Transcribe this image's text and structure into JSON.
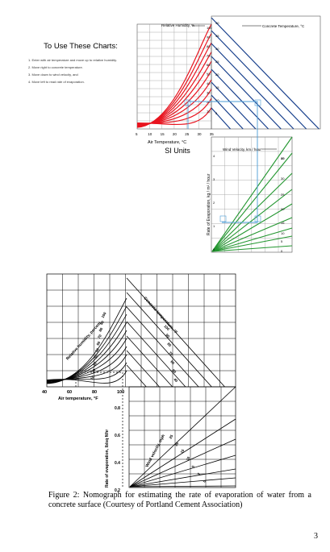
{
  "si_chart": {
    "instructions_title": "To Use These Charts:",
    "steps": [
      "1. Enter with air temperature and move up to relative humidity.",
      "2. Move right to concrete temperature.",
      "3. Move down to wind velocity, and",
      "4. Move left to read rate of evaporation."
    ],
    "rh_label": "Relative Humidity, %",
    "ct_label": "Concrete Temperature, °C",
    "rh_values": [
      "100",
      "90",
      "80",
      "70",
      "60",
      "50",
      "40",
      "30",
      "20",
      "10"
    ],
    "ct_values": [
      "40",
      "35",
      "30",
      "25",
      "20",
      "15",
      "10",
      "5"
    ],
    "air_ticks": [
      "5",
      "10",
      "15",
      "20",
      "25",
      "30",
      "35"
    ],
    "air_label": "Air Temperature, °C",
    "units_label": "SI Units",
    "wind_label": "Wind Velocity, km / hour",
    "wind_values": [
      "40",
      "35",
      "30",
      "25",
      "20",
      "15",
      "10",
      "5",
      "0"
    ],
    "evap_label": "Rate of Evaporation, kg / m² / hour",
    "evap_ticks": [
      "4",
      "3",
      "2",
      "1",
      "0"
    ],
    "colors": {
      "humidity": "#e8141f",
      "concrete": "#173f8c",
      "wind": "#22962f",
      "path": "#4a9bd6"
    }
  },
  "imperial_chart": {
    "rh_label": "Relative humidity, percent",
    "rh_values": [
      "100",
      "90",
      "80",
      "70",
      "60",
      "50",
      "40",
      "30",
      "20",
      "10"
    ],
    "ct_label": "Concrete temperature, °F",
    "ct_values": [
      "100",
      "90",
      "80",
      "70",
      "60",
      "50",
      "40"
    ],
    "air_ticks": [
      "40",
      "60",
      "80",
      "100"
    ],
    "air_label": "Air temperature, °F",
    "wind_label": "Wind velocity, mph",
    "wind_values": [
      "25",
      "20",
      "15",
      "10",
      "5",
      "2",
      "0"
    ],
    "evap_label": "Rate of evaporation, lb/sq ft/hr",
    "evap_ticks": [
      "0.8",
      "0.6",
      "0.4",
      "0.2"
    ]
  },
  "caption": "Figure 2: Nomograph for estimating the rate of evaporation of water from a concrete surface (Courtesy of Portland Cement Association)",
  "page_number": "3"
}
